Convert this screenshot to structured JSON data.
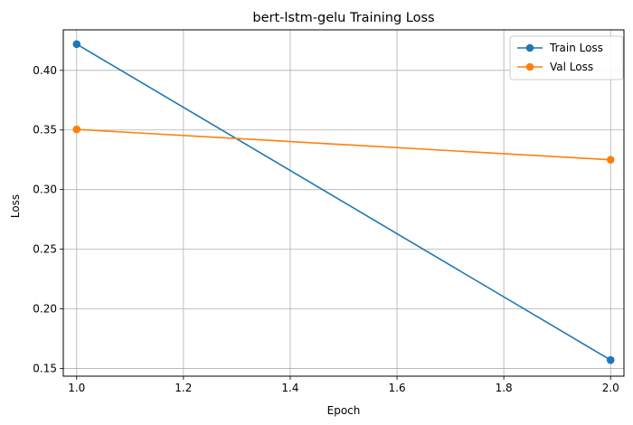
{
  "chart_data": {
    "type": "line",
    "title": "bert-lstm-gelu Training Loss",
    "xlabel": "Epoch",
    "ylabel": "Loss",
    "x": [
      1.0,
      2.0
    ],
    "xlim": [
      0.975,
      2.025
    ],
    "ylim": [
      0.1435,
      0.434
    ],
    "xticks": [
      1.0,
      1.2,
      1.4,
      1.6,
      1.8,
      2.0
    ],
    "xtick_labels": [
      "1.0",
      "1.2",
      "1.4",
      "1.6",
      "1.8",
      "2.0"
    ],
    "yticks": [
      0.15,
      0.2,
      0.25,
      0.3,
      0.35,
      0.4
    ],
    "ytick_labels": [
      "0.15",
      "0.20",
      "0.25",
      "0.30",
      "0.35",
      "0.40"
    ],
    "grid": true,
    "legend_position": "top-right",
    "series": [
      {
        "name": "Train Loss",
        "color": "#1f77b4",
        "marker": "circle",
        "values": [
          0.422,
          0.157
        ]
      },
      {
        "name": "Val Loss",
        "color": "#ff7f0e",
        "marker": "circle",
        "values": [
          0.3505,
          0.325
        ]
      }
    ]
  }
}
